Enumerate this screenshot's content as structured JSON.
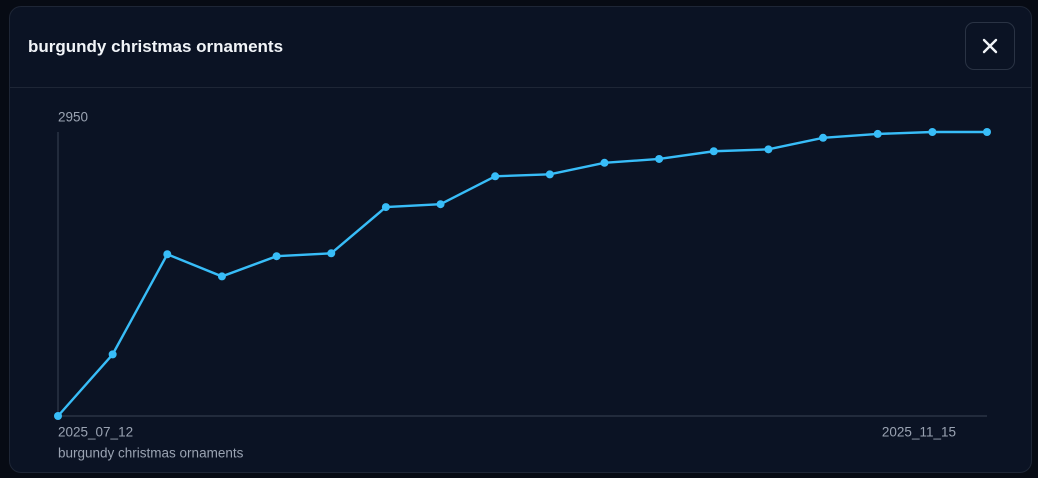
{
  "chart_data": {
    "type": "line",
    "title": "burgundy christmas ornaments",
    "categories": [
      "2025_07_12",
      null,
      null,
      null,
      null,
      null,
      null,
      null,
      null,
      null,
      null,
      null,
      null,
      null,
      null,
      null,
      null,
      "2025_11_15"
    ],
    "series": [
      {
        "name": "burgundy christmas ornaments",
        "color": "#38bdf8",
        "values": [
          0,
          640,
          1680,
          1450,
          1660,
          1690,
          2170,
          2200,
          2490,
          2510,
          2630,
          2670,
          2750,
          2770,
          2890,
          2930,
          2950,
          2950
        ]
      }
    ],
    "ylim": [
      0,
      2950
    ],
    "yticks": [
      2950
    ]
  }
}
